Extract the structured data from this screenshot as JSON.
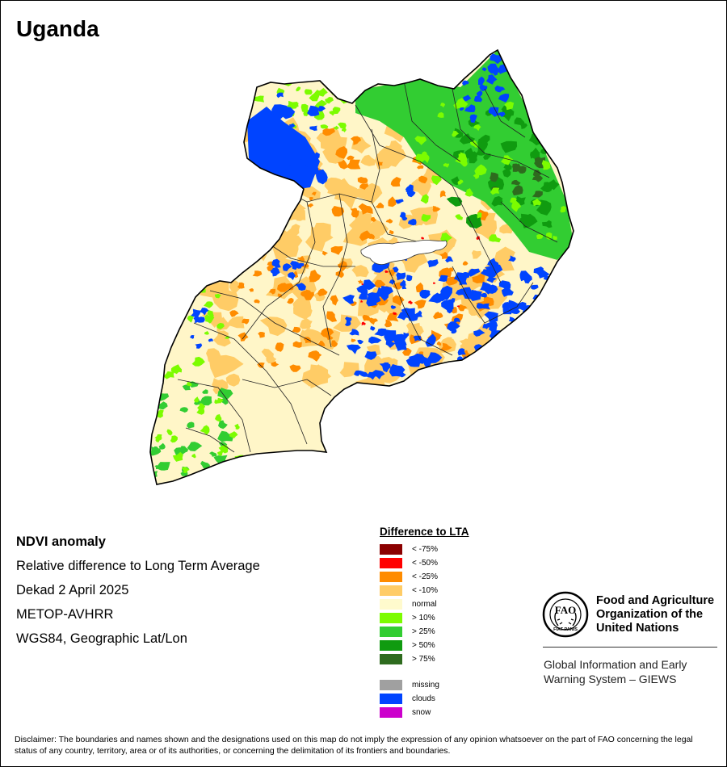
{
  "map": {
    "title": "Uganda",
    "region": "Uganda",
    "heading": "NDVI anomaly",
    "subtitle": "Relative difference to Long Term Average",
    "period": "Dekad 2 April 2025",
    "sensor": "METOP-AVHRR",
    "projection": "WGS84, Geographic Lat/Lon"
  },
  "legend": {
    "title": "Difference to LTA",
    "classes": [
      {
        "label": "< -75%",
        "color": "#8b0000"
      },
      {
        "label": "< -50%",
        "color": "#ff0000"
      },
      {
        "label": "< -25%",
        "color": "#ff8c00"
      },
      {
        "label": "< -10%",
        "color": "#ffcc66"
      },
      {
        "label": "normal",
        "color": "#fffacd"
      },
      {
        "label": "> 10%",
        "color": "#7cfc00"
      },
      {
        "label": "> 25%",
        "color": "#32cd32"
      },
      {
        "label": "> 50%",
        "color": "#109b10"
      },
      {
        "label": "> 75%",
        "color": "#2e6b1e"
      }
    ],
    "special": [
      {
        "label": "missing",
        "color": "#a0a0a0"
      },
      {
        "label": "clouds",
        "color": "#0044ff"
      },
      {
        "label": "snow",
        "color": "#cc00cc"
      }
    ]
  },
  "organization": {
    "logo_text": "FAO",
    "logo_motto": "FIAT PANIS",
    "name_line1": "Food and Agriculture",
    "name_line2": "Organization of the",
    "name_line3": "United Nations",
    "system_line1": "Global Information and Early",
    "system_line2": "Warning System – GIEWS"
  },
  "disclaimer": "Disclaimer: The boundaries and names shown and the designations used on this map do not imply the expression of any opinion whatsoever on the part of FAO concerning the legal status of any country, territory, area or of its authorities, or concerning the delimitation of its frontiers and boundaries."
}
